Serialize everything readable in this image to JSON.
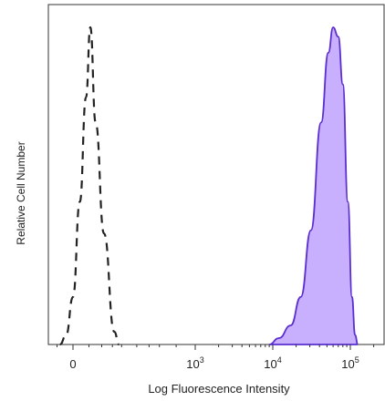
{
  "chart_data": {
    "type": "area",
    "title": "",
    "xlabel": "Log Fluorescence Intensity",
    "ylabel": "Relative Cell Number",
    "x_scale": "biexponential",
    "x_ticks": [
      {
        "value": 0,
        "base": "0",
        "exp": ""
      },
      {
        "value": 1000,
        "base": "10",
        "exp": "3"
      },
      {
        "value": 10000,
        "base": "10",
        "exp": "4"
      },
      {
        "value": 100000,
        "base": "10",
        "exp": "5"
      }
    ],
    "ylim": [
      0,
      100
    ],
    "grid": false,
    "series": [
      {
        "style": "dashed",
        "color": "#222222",
        "filled": false,
        "points": [
          [
            -40,
            0
          ],
          [
            -20,
            3
          ],
          [
            0,
            15
          ],
          [
            20,
            45
          ],
          [
            40,
            78
          ],
          [
            55,
            100
          ],
          [
            75,
            70
          ],
          [
            110,
            35
          ],
          [
            160,
            4
          ],
          [
            185,
            0
          ]
        ]
      },
      {
        "style": "filled",
        "color": "#5b2fcf",
        "fill": "#c9b0ff",
        "filled": true,
        "points": [
          [
            9000,
            0
          ],
          [
            12000,
            2
          ],
          [
            17000,
            6
          ],
          [
            23000,
            15
          ],
          [
            31000,
            36
          ],
          [
            42000,
            70
          ],
          [
            52000,
            92
          ],
          [
            60000,
            100
          ],
          [
            70000,
            97
          ],
          [
            80000,
            82
          ],
          [
            93000,
            45
          ],
          [
            105000,
            15
          ],
          [
            115000,
            3
          ],
          [
            125000,
            0
          ]
        ]
      }
    ]
  }
}
